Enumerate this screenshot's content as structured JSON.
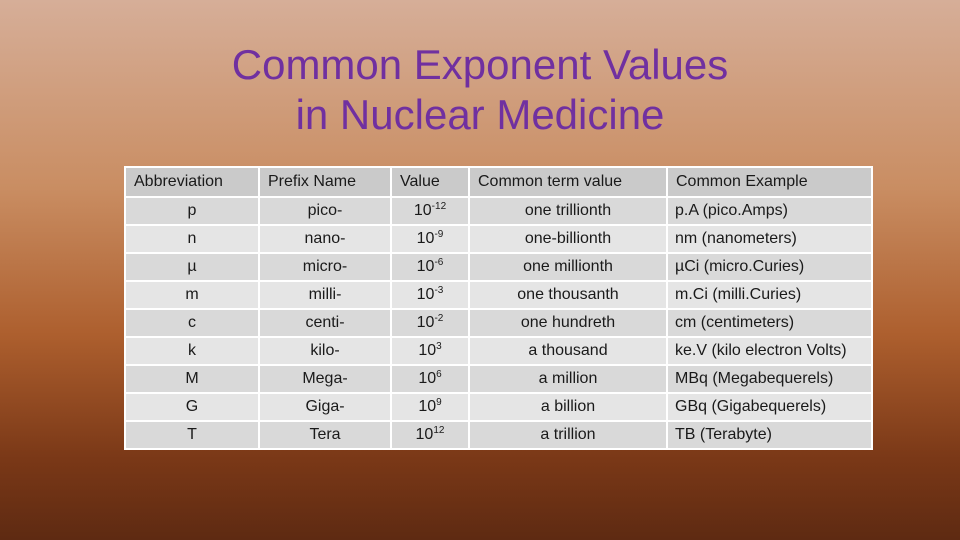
{
  "title": {
    "line1": "Common Exponent Values",
    "line2": "in Nuclear Medicine"
  },
  "table": {
    "headers": [
      "Abbreviation",
      "Prefix Name",
      "Value",
      "Common term value",
      "Common Example"
    ],
    "rows": [
      {
        "abbr": "p",
        "prefix": "pico-",
        "base": "10",
        "exp": "-12",
        "term": "one trillionth",
        "example": "p.A (pico.Amps)"
      },
      {
        "abbr": "n",
        "prefix": "nano-",
        "base": "10",
        "exp": "-9",
        "term": "one-billionth",
        "example": "nm (nanometers)"
      },
      {
        "abbr": "µ",
        "prefix": "micro-",
        "base": "10",
        "exp": "-6",
        "term": "one millionth",
        "example": "µCi (micro.Curies)"
      },
      {
        "abbr": "m",
        "prefix": "milli-",
        "base": "10",
        "exp": "-3",
        "term": "one thousanth",
        "example": "m.Ci (milli.Curies)"
      },
      {
        "abbr": "c",
        "prefix": "centi-",
        "base": "10",
        "exp": "-2",
        "term": "one hundreth",
        "example": "cm (centimeters)"
      },
      {
        "abbr": "k",
        "prefix": "kilo-",
        "base": "10",
        "exp": "3",
        "term": "a thousand",
        "example": "ke.V (kilo electron Volts)"
      },
      {
        "abbr": "M",
        "prefix": "Mega-",
        "base": "10",
        "exp": "6",
        "term": "a million",
        "example": "MBq (Megabequerels)"
      },
      {
        "abbr": "G",
        "prefix": "Giga-",
        "base": "10",
        "exp": "9",
        "term": "a billion",
        "example": "GBq (Gigabequerels)"
      },
      {
        "abbr": "T",
        "prefix": "Tera",
        "base": "10",
        "exp": "12",
        "term": "a trillion",
        "example": "TB (Terabyte)"
      }
    ]
  },
  "colors": {
    "title": "#7030a0",
    "header_bg": "#cacaca",
    "row_bg_odd": "#d9d9d9",
    "row_bg_even": "#e5e5e5",
    "background_top": "#d6ae98",
    "background_bottom": "#5e2a12"
  }
}
